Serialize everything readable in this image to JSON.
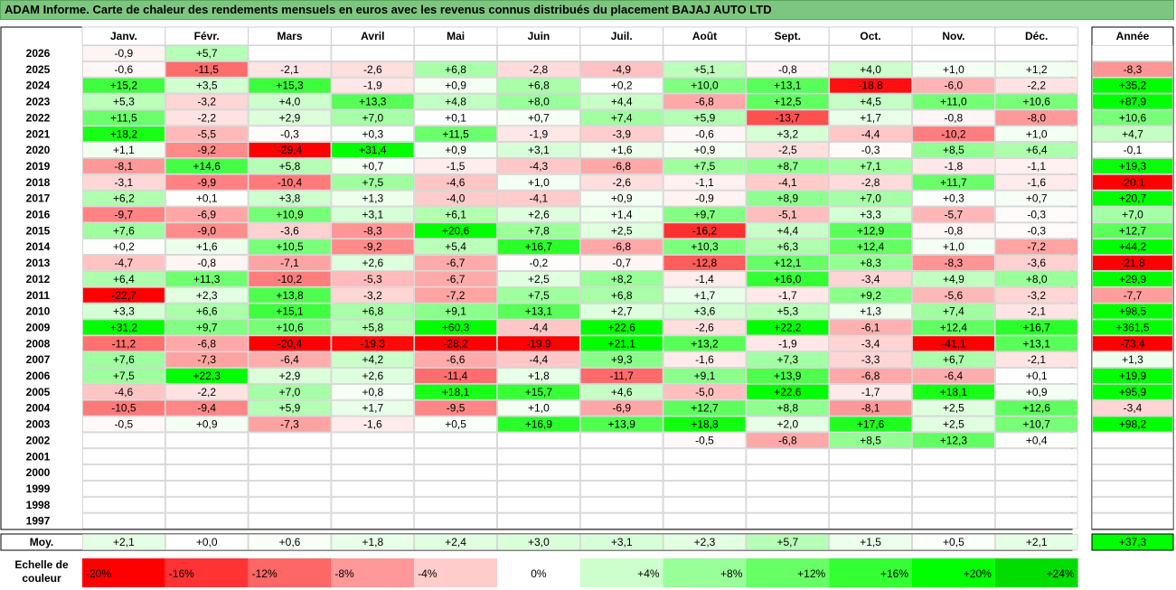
{
  "title": "ADAM Informe. Carte de chaleur des rendements mensuels en euros avec les revenus connus distribués du placement BAJAJ AUTO LTD",
  "chart_data": {
    "type": "heatmap",
    "months": [
      "Janv.",
      "Févr.",
      "Mars",
      "Avril",
      "Mai",
      "Juin",
      "Juil.",
      "Août",
      "Sept.",
      "Oct.",
      "Nov.",
      "Déc."
    ],
    "year_header": "Année",
    "avg_label": "Moy.",
    "scale_label_line1": "Echelle de",
    "scale_label_line2": "couleur",
    "rows": [
      {
        "year": "2026",
        "values": [
          "-0,9",
          "+5,7",
          "",
          "",
          "",
          "",
          "",
          "",
          "",
          "",
          "",
          ""
        ],
        "annual": ""
      },
      {
        "year": "2025",
        "values": [
          "-0,6",
          "-11,5",
          "-2,1",
          "-2,6",
          "+6,8",
          "-2,8",
          "-4,9",
          "+5,1",
          "-0,8",
          "+4,0",
          "+1,0",
          "+1,2"
        ],
        "annual": "-8,3"
      },
      {
        "year": "2024",
        "values": [
          "+15,2",
          "+3,5",
          "+15,3",
          "-1,9",
          "+0,9",
          "+6,8",
          "+0,2",
          "+10,0",
          "+13,1",
          "-18,8",
          "-6,0",
          "-2,2"
        ],
        "annual": "+35,2"
      },
      {
        "year": "2023",
        "values": [
          "+5,3",
          "-3,2",
          "+4,0",
          "+13,3",
          "+4,8",
          "+8,0",
          "+4,4",
          "-6,8",
          "+12,5",
          "+4,5",
          "+11,0",
          "+10,6"
        ],
        "annual": "+87,9"
      },
      {
        "year": "2022",
        "values": [
          "+11,5",
          "-2,2",
          "+2,9",
          "+7,0",
          "+0,1",
          "+0,7",
          "+7,4",
          "+5,9",
          "-13,7",
          "+1,7",
          "-0,8",
          "-8,0"
        ],
        "annual": "+10,6"
      },
      {
        "year": "2021",
        "values": [
          "+18,2",
          "-5,5",
          "-0,3",
          "+0,3",
          "+11,5",
          "-1,9",
          "-3,9",
          "-0,6",
          "+3,2",
          "-4,4",
          "-10,2",
          "+1,0"
        ],
        "annual": "+4,7"
      },
      {
        "year": "2020",
        "values": [
          "+1,1",
          "-9,2",
          "-29,4",
          "+31,4",
          "+0,9",
          "+3,1",
          "+1,6",
          "+0,9",
          "-2,5",
          "-0,3",
          "+8,5",
          "+6,4"
        ],
        "annual": "-0,1"
      },
      {
        "year": "2019",
        "values": [
          "-8,1",
          "+14,6",
          "+5,8",
          "+0,7",
          "-1,5",
          "-4,3",
          "-6,8",
          "+7,5",
          "+8,7",
          "+7,1",
          "-1,8",
          "-1,1"
        ],
        "annual": "+19,3"
      },
      {
        "year": "2018",
        "values": [
          "-3,1",
          "-9,9",
          "-10,4",
          "+7,5",
          "-4,6",
          "+1,0",
          "-2,6",
          "-1,1",
          "-4,1",
          "-2,8",
          "+11,7",
          "-1,6"
        ],
        "annual": "-20,1"
      },
      {
        "year": "2017",
        "values": [
          "+6,2",
          "+0,1",
          "+3,8",
          "+1,3",
          "-4,0",
          "-4,1",
          "+0,9",
          "-0,9",
          "+8,9",
          "+7,0",
          "+0,3",
          "+0,7"
        ],
        "annual": "+20,7"
      },
      {
        "year": "2016",
        "values": [
          "-9,7",
          "-6,9",
          "+10,9",
          "+3,1",
          "+6,1",
          "+2,6",
          "+1,4",
          "+9,7",
          "-5,1",
          "+3,3",
          "-5,7",
          "-0,3"
        ],
        "annual": "+7,0"
      },
      {
        "year": "2015",
        "values": [
          "+7,6",
          "-9,0",
          "-3,6",
          "-8,3",
          "+20,6",
          "+7,8",
          "+2,5",
          "-16,2",
          "+4,4",
          "+12,9",
          "-0,8",
          "-0,3"
        ],
        "annual": "+12,7"
      },
      {
        "year": "2014",
        "values": [
          "+0,2",
          "+1,6",
          "+10,5",
          "-9,2",
          "+5,4",
          "+16,7",
          "-6,8",
          "+10,3",
          "+6,3",
          "+12,4",
          "+1,0",
          "-7,2"
        ],
        "annual": "+44,2"
      },
      {
        "year": "2013",
        "values": [
          "-4,7",
          "-0,8",
          "-7,1",
          "+2,6",
          "-6,7",
          "-0,2",
          "-0,7",
          "-12,8",
          "+12,1",
          "+8,3",
          "-8,3",
          "-3,6"
        ],
        "annual": "-21,8"
      },
      {
        "year": "2012",
        "values": [
          "+6,4",
          "+11,3",
          "-10,2",
          "-5,3",
          "-6,7",
          "+2,5",
          "+8,2",
          "-1,4",
          "+16,0",
          "-3,4",
          "+4,9",
          "+8,0"
        ],
        "annual": "+29,9"
      },
      {
        "year": "2011",
        "values": [
          "-22,7",
          "+2,3",
          "+13,8",
          "-3,2",
          "-7,2",
          "+7,5",
          "+6,8",
          "+1,7",
          "-1,7",
          "+9,2",
          "-5,6",
          "-3,2"
        ],
        "annual": "-7,7"
      },
      {
        "year": "2010",
        "values": [
          "+3,3",
          "+6,6",
          "+15,1",
          "+6,8",
          "+9,1",
          "+13,1",
          "+2,7",
          "+3,6",
          "+5,3",
          "+1,3",
          "+7,4",
          "-2,1"
        ],
        "annual": "+98,5"
      },
      {
        "year": "2009",
        "values": [
          "+31,2",
          "+9,7",
          "+10,6",
          "+5,8",
          "+60,3",
          "-4,4",
          "+22,6",
          "-2,6",
          "+22,2",
          "-6,1",
          "+12,4",
          "+16,7"
        ],
        "annual": "+361,5"
      },
      {
        "year": "2008",
        "values": [
          "-11,2",
          "-6,8",
          "-20,4",
          "-19,3",
          "-28,2",
          "-19,9",
          "+21,1",
          "+13,2",
          "-1,9",
          "-3,4",
          "-41,1",
          "+13,1"
        ],
        "annual": "-73,4"
      },
      {
        "year": "2007",
        "values": [
          "+7,6",
          "-7,3",
          "-6,4",
          "+4,2",
          "-6,6",
          "-4,4",
          "+9,3",
          "-1,6",
          "+7,3",
          "-3,3",
          "+6,7",
          "-2,1"
        ],
        "annual": "+1,3"
      },
      {
        "year": "2006",
        "values": [
          "+7,5",
          "+22,3",
          "+2,9",
          "+2,6",
          "-11,4",
          "+1,8",
          "-11,7",
          "+9,1",
          "+13,9",
          "-6,8",
          "-6,4",
          "+0,1"
        ],
        "annual": "+19,9"
      },
      {
        "year": "2005",
        "values": [
          "-4,6",
          "-2,2",
          "+7,0",
          "+0,8",
          "+18,1",
          "+15,7",
          "+4,6",
          "-5,0",
          "+22,6",
          "-1,7",
          "+18,1",
          "+0,9"
        ],
        "annual": "+95,9"
      },
      {
        "year": "2004",
        "values": [
          "-10,5",
          "-9,4",
          "+5,9",
          "+1,7",
          "-9,5",
          "+1,0",
          "-6,9",
          "+12,7",
          "+8,8",
          "-8,1",
          "+2,5",
          "+12,6"
        ],
        "annual": "-3,4"
      },
      {
        "year": "2003",
        "values": [
          "-0,5",
          "+0,9",
          "-7,3",
          "-1,6",
          "+0,5",
          "+16,9",
          "+13,9",
          "+18,8",
          "+2,0",
          "+17,6",
          "+2,5",
          "+10,7"
        ],
        "annual": "+98,2"
      },
      {
        "year": "2002",
        "values": [
          "",
          "",
          "",
          "",
          "",
          "",
          "",
          "-0,5",
          "-6,8",
          "+8,5",
          "+12,3",
          "+0,4"
        ],
        "annual": ""
      },
      {
        "year": "2001",
        "values": [
          "",
          "",
          "",
          "",
          "",
          "",
          "",
          "",
          "",
          "",
          "",
          ""
        ],
        "annual": ""
      },
      {
        "year": "2000",
        "values": [
          "",
          "",
          "",
          "",
          "",
          "",
          "",
          "",
          "",
          "",
          "",
          ""
        ],
        "annual": ""
      },
      {
        "year": "1999",
        "values": [
          "",
          "",
          "",
          "",
          "",
          "",
          "",
          "",
          "",
          "",
          "",
          ""
        ],
        "annual": ""
      },
      {
        "year": "1998",
        "values": [
          "",
          "",
          "",
          "",
          "",
          "",
          "",
          "",
          "",
          "",
          "",
          ""
        ],
        "annual": ""
      },
      {
        "year": "1997",
        "values": [
          "",
          "",
          "",
          "",
          "",
          "",
          "",
          "",
          "",
          "",
          "",
          ""
        ],
        "annual": ""
      }
    ],
    "averages": [
      "+2,1",
      "+0,0",
      "+0,6",
      "+1,8",
      "+2,4",
      "+3,0",
      "+3,1",
      "+2,3",
      "+5,7",
      "+1,5",
      "+0,5",
      "+2,1"
    ],
    "average_annual": "+37,3",
    "color_scale": [
      {
        "label": "-20%",
        "value": -20,
        "color": "#ff0000"
      },
      {
        "label": "-16%",
        "value": -16,
        "color": "#ff3333"
      },
      {
        "label": "-12%",
        "value": -12,
        "color": "#ff6666"
      },
      {
        "label": "-8%",
        "value": -8,
        "color": "#ff9999"
      },
      {
        "label": "-4%",
        "value": -4,
        "color": "#ffcccc"
      },
      {
        "label": "0%",
        "value": 0,
        "color": "#ffffff"
      },
      {
        "label": "+4%",
        "value": 4,
        "color": "#ccffcc"
      },
      {
        "label": "+8%",
        "value": 8,
        "color": "#99ff99"
      },
      {
        "label": "+12%",
        "value": 12,
        "color": "#66ff66"
      },
      {
        "label": "+16%",
        "value": 16,
        "color": "#33ff33"
      },
      {
        "label": "+20%",
        "value": 20,
        "color": "#00ff00"
      },
      {
        "label": "+24%",
        "value": 24,
        "color": "#00dd00"
      }
    ]
  }
}
